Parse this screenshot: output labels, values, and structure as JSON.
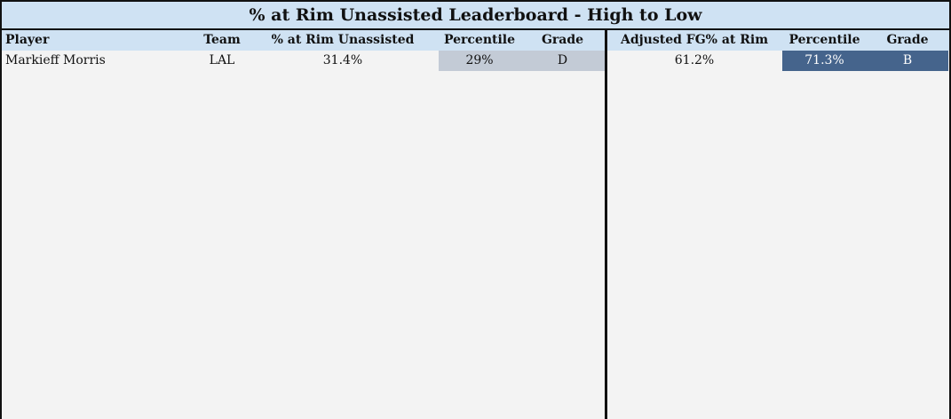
{
  "title": "% at Rim Unassisted Leaderboard - High to Low",
  "table": {
    "columns": [
      "Player",
      "Team",
      "% at Rim Unassisted",
      "Percentile",
      "Grade",
      "Adjusted FG% at Rim",
      "Percentile",
      "Grade"
    ],
    "rows": [
      [
        "Markieff Morris",
        "LAL",
        "31.4%",
        "29%",
        "D",
        "61.2%",
        "71.3%",
        "B"
      ]
    ]
  }
}
